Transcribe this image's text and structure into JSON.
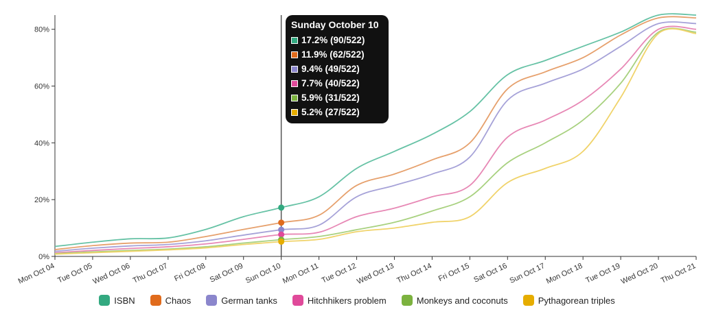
{
  "chart_data": {
    "type": "line",
    "x": [
      "Mon Oct 04",
      "Tue Oct 05",
      "Wed Oct 06",
      "Thu Oct 07",
      "Fri Oct 08",
      "Sat Oct 09",
      "Sun Oct 10",
      "Mon Oct 11",
      "Tue Oct 12",
      "Wed Oct 13",
      "Thu Oct 14",
      "Fri Oct 15",
      "Sat Oct 16",
      "Sun Oct 17",
      "Mon Oct 18",
      "Tue Oct 19",
      "Wed Oct 20",
      "Thu Oct 21"
    ],
    "ylim": [
      0,
      85
    ],
    "yticks": [
      0,
      20,
      40,
      60,
      80
    ],
    "ytick_labels": [
      "0%",
      "20%",
      "40%",
      "60%",
      "80%"
    ],
    "series": [
      {
        "name": "ISBN",
        "color": "#66c2a5",
        "marker_color": "#33a980",
        "values": [
          3.5,
          5,
          6.2,
          6.5,
          9.5,
          14,
          17.2,
          21,
          31,
          37,
          43,
          51,
          64,
          69,
          74,
          79,
          85,
          85
        ]
      },
      {
        "name": "Chaos",
        "color": "#e6a06c",
        "marker_color": "#e06b1c",
        "values": [
          2.4,
          3.8,
          4.7,
          5,
          7,
          9.5,
          11.9,
          14.5,
          25,
          29,
          34,
          40,
          59,
          65,
          70,
          78,
          84,
          84
        ]
      },
      {
        "name": "German tanks",
        "color": "#a6a2d8",
        "marker_color": "#8b86cc",
        "values": [
          1.8,
          2.9,
          3.7,
          4.2,
          5.5,
          7.5,
          9.4,
          11,
          21,
          25,
          29,
          35,
          55,
          61,
          66,
          74,
          82,
          82
        ]
      },
      {
        "name": "Hitchhikers problem",
        "color": "#e788b5",
        "marker_color": "#e04a9a",
        "values": [
          1.3,
          2.1,
          2.8,
          3.4,
          4.4,
          6,
          7.7,
          8.5,
          14,
          17,
          21,
          25,
          42,
          48,
          55,
          66,
          80,
          80
        ]
      },
      {
        "name": "Monkeys and coconuts",
        "color": "#a8d17f",
        "marker_color": "#7cb23f",
        "values": [
          1,
          1.6,
          2.1,
          2.6,
          3.4,
          4.7,
          5.9,
          7,
          9.4,
          12,
          16,
          21,
          33,
          40,
          48,
          61,
          79,
          79
        ]
      },
      {
        "name": "Pythagorean triples",
        "color": "#f0d36a",
        "marker_color": "#e6ad00",
        "values": [
          0.8,
          1.3,
          1.8,
          2.3,
          3,
          4.2,
          5.2,
          6,
          8.7,
          10,
          12,
          14,
          26,
          31,
          37,
          56,
          78.5,
          78.5
        ]
      }
    ],
    "legend_position": "bottom",
    "hover_index": 6
  },
  "tooltip": {
    "title": "Sunday October 10",
    "rows": [
      "17.2% (90/522)",
      "11.9% (62/522)",
      "9.4% (49/522)",
      "7.7% (40/522)",
      "5.9% (31/522)",
      "5.2% (27/522)"
    ]
  }
}
